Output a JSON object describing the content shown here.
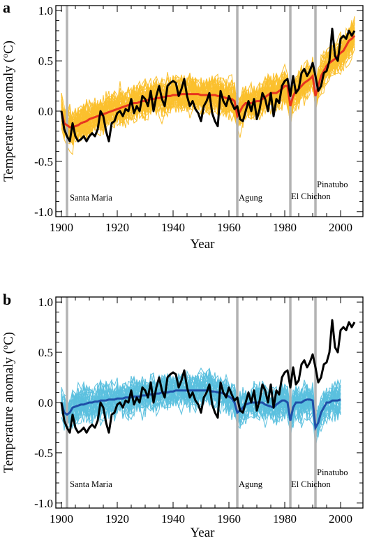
{
  "chart_data": [
    {
      "panel": "a",
      "type": "line",
      "xlabel": "Year",
      "ylabel": "Temperature anomaly (oC)",
      "ylabel_main": "Temperature anomaly (",
      "ylabel_sup": "o",
      "ylabel_end": "C)",
      "xlim": [
        1898,
        2008
      ],
      "ylim": [
        -1.05,
        1.05
      ],
      "xticks": [
        "1900",
        "1920",
        "1940",
        "1960",
        "1980",
        "2000"
      ],
      "yticks": [
        "-1.0",
        "-0.5",
        "0.0",
        "0.5",
        "1.0"
      ],
      "grid": false,
      "events": [
        {
          "name": "Santa Maria",
          "year": 1902
        },
        {
          "name": "Agung",
          "year": 1963
        },
        {
          "name": "El Chichon",
          "year": 1982
        },
        {
          "name": "Pinatubo",
          "year": 1991
        }
      ],
      "series": [
        {
          "role": "observed",
          "color": "#000000",
          "x_start": 1900,
          "y": [
            0.0,
            -0.18,
            -0.25,
            -0.3,
            -0.12,
            -0.25,
            -0.3,
            -0.28,
            -0.25,
            -0.3,
            -0.25,
            -0.22,
            -0.25,
            -0.18,
            0.0,
            -0.05,
            -0.2,
            -0.3,
            -0.12,
            -0.1,
            -0.02,
            0.0,
            -0.05,
            0.02,
            0.0,
            0.12,
            -0.02,
            0.05,
            0.0,
            0.15,
            0.12,
            0.05,
            0.2,
            0.0,
            0.15,
            0.25,
            0.12,
            0.05,
            0.25,
            0.28,
            0.3,
            0.28,
            0.15,
            0.22,
            0.32,
            0.15,
            0.05,
            0.1,
            0.02,
            -0.02,
            -0.1,
            0.05,
            0.1,
            0.18,
            -0.02,
            -0.1,
            -0.15,
            0.2,
            0.1,
            0.05,
            0.15,
            0.08,
            0.02,
            0.05,
            -0.08,
            -0.1,
            0.0,
            0.1,
            0.0,
            0.12,
            -0.08,
            0.02,
            0.18,
            0.12,
            0.0,
            0.18,
            -0.05,
            0.12,
            0.08,
            0.25,
            0.3,
            0.32,
            0.15,
            0.35,
            0.18,
            0.22,
            0.38,
            0.42,
            0.35,
            0.4,
            0.48,
            0.35,
            0.2,
            0.25,
            0.38,
            0.4,
            0.5,
            0.82,
            0.55,
            0.5,
            0.72,
            0.75,
            0.72,
            0.8,
            0.75,
            0.8
          ]
        },
        {
          "role": "ensemble-mean",
          "color": "#e8351f",
          "x_start": 1900,
          "y": [
            0.0,
            -0.12,
            -0.14,
            -0.16,
            -0.16,
            -0.15,
            -0.14,
            -0.12,
            -0.11,
            -0.1,
            -0.08,
            -0.07,
            -0.06,
            -0.05,
            -0.04,
            -0.03,
            -0.02,
            -0.01,
            0.0,
            0.01,
            0.02,
            0.03,
            0.04,
            0.05,
            0.06,
            0.07,
            0.08,
            0.08,
            0.09,
            0.1,
            0.1,
            0.11,
            0.12,
            0.12,
            0.13,
            0.13,
            0.14,
            0.14,
            0.15,
            0.15,
            0.16,
            0.16,
            0.16,
            0.17,
            0.17,
            0.17,
            0.17,
            0.17,
            0.17,
            0.17,
            0.16,
            0.16,
            0.16,
            0.16,
            0.16,
            0.16,
            0.15,
            0.15,
            0.14,
            0.13,
            0.12,
            0.12,
            0.1,
            -0.05,
            0.0,
            0.05,
            0.08,
            0.08,
            0.08,
            0.09,
            0.1,
            0.1,
            0.12,
            0.14,
            0.16,
            0.18,
            0.18,
            0.18,
            0.2,
            0.22,
            0.25,
            0.25,
            0.05,
            0.15,
            0.2,
            0.22,
            0.25,
            0.28,
            0.3,
            0.32,
            0.35,
            0.15,
            0.25,
            0.35,
            0.4,
            0.45,
            0.48,
            0.5,
            0.52,
            0.55,
            0.58,
            0.6,
            0.65,
            0.7,
            0.72,
            0.75
          ]
        },
        {
          "role": "ensemble-member",
          "color": "#fbc02d"
        }
      ]
    },
    {
      "panel": "b",
      "type": "line",
      "xlabel": "Year",
      "ylabel": "Temperature anomaly (oC)",
      "ylabel_main": "Temperature anomaly (",
      "ylabel_sup": "o",
      "ylabel_end": "C)",
      "xlim": [
        1898,
        2008
      ],
      "ylim": [
        -1.05,
        1.05
      ],
      "xticks": [
        "1900",
        "1920",
        "1940",
        "1960",
        "1980",
        "2000"
      ],
      "yticks": [
        "-1.0",
        "-0.5",
        "0.0",
        "0.5",
        "1.0"
      ],
      "grid": false,
      "events": [
        {
          "name": "Santa Maria",
          "year": 1902
        },
        {
          "name": "Agung",
          "year": 1963
        },
        {
          "name": "El Chichon",
          "year": 1982
        },
        {
          "name": "Pinatubo",
          "year": 1991
        }
      ],
      "series": [
        {
          "role": "observed",
          "color": "#000000",
          "x_start": 1900,
          "y": [
            0.0,
            -0.18,
            -0.25,
            -0.3,
            -0.12,
            -0.25,
            -0.3,
            -0.28,
            -0.25,
            -0.3,
            -0.25,
            -0.22,
            -0.25,
            -0.18,
            0.0,
            -0.05,
            -0.2,
            -0.3,
            -0.12,
            -0.1,
            -0.02,
            0.0,
            -0.05,
            0.02,
            0.0,
            0.12,
            -0.02,
            0.05,
            0.0,
            0.15,
            0.12,
            0.05,
            0.2,
            0.0,
            0.15,
            0.25,
            0.12,
            0.05,
            0.25,
            0.28,
            0.3,
            0.28,
            0.15,
            0.22,
            0.32,
            0.15,
            0.05,
            0.1,
            0.02,
            -0.02,
            -0.1,
            0.05,
            0.1,
            0.18,
            -0.02,
            -0.1,
            -0.15,
            0.2,
            0.1,
            0.05,
            0.15,
            0.08,
            0.02,
            0.05,
            -0.08,
            -0.1,
            0.0,
            0.1,
            0.0,
            0.12,
            -0.08,
            0.02,
            0.18,
            0.12,
            0.0,
            0.18,
            -0.05,
            0.12,
            0.08,
            0.25,
            0.3,
            0.32,
            0.15,
            0.35,
            0.18,
            0.22,
            0.38,
            0.42,
            0.35,
            0.4,
            0.48,
            0.35,
            0.2,
            0.25,
            0.38,
            0.4,
            0.5,
            0.82,
            0.55,
            0.5,
            0.72,
            0.75,
            0.72,
            0.8,
            0.75,
            0.8
          ]
        },
        {
          "role": "ensemble-mean",
          "color": "#1f4fa8",
          "x_start": 1900,
          "y": [
            0.0,
            -0.1,
            -0.12,
            -0.1,
            -0.05,
            -0.04,
            -0.03,
            -0.02,
            -0.02,
            -0.01,
            0.0,
            0.0,
            0.01,
            0.01,
            0.02,
            0.02,
            0.02,
            0.03,
            0.03,
            0.03,
            0.04,
            0.04,
            0.04,
            0.05,
            0.05,
            0.05,
            0.06,
            0.06,
            0.06,
            0.07,
            0.07,
            0.08,
            0.08,
            0.08,
            0.09,
            0.09,
            0.1,
            0.1,
            0.1,
            0.11,
            0.11,
            0.12,
            0.12,
            0.12,
            0.12,
            0.12,
            0.12,
            0.12,
            0.12,
            0.12,
            0.12,
            0.12,
            0.12,
            0.12,
            0.11,
            0.11,
            0.1,
            0.1,
            0.09,
            0.08,
            0.06,
            0.04,
            0.0,
            -0.1,
            -0.08,
            -0.05,
            -0.02,
            -0.01,
            0.0,
            0.0,
            0.0,
            0.0,
            0.0,
            -0.02,
            -0.03,
            -0.04,
            -0.05,
            -0.02,
            0.0,
            0.02,
            0.02,
            0.0,
            -0.18,
            -0.05,
            0.0,
            0.0,
            0.0,
            0.02,
            0.03,
            0.03,
            0.02,
            -0.25,
            -0.2,
            -0.1,
            -0.05,
            0.0,
            0.0,
            0.02,
            0.02,
            0.02,
            0.03
          ]
        },
        {
          "role": "ensemble-member",
          "color": "#5bc0de"
        }
      ]
    }
  ]
}
